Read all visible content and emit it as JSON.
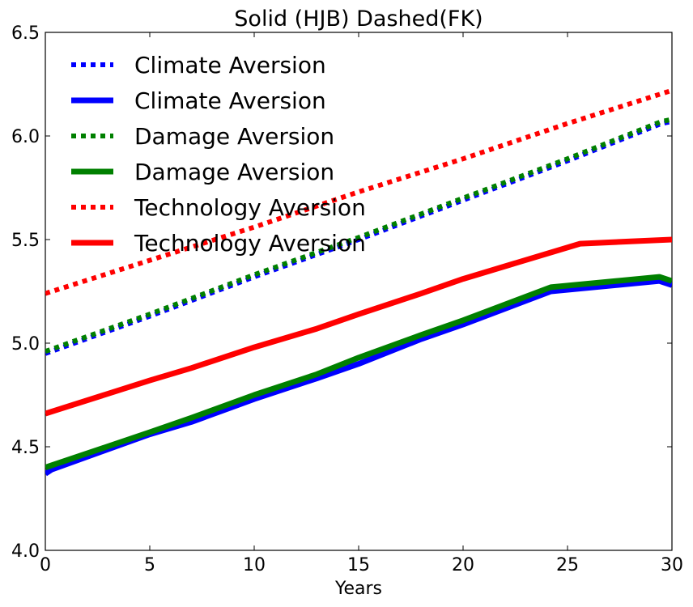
{
  "chart_data": {
    "type": "line",
    "title": "Solid (HJB) Dashed(FK)",
    "xlabel": "Years",
    "ylabel": "",
    "xlim": [
      0,
      30
    ],
    "ylim": [
      4.0,
      6.5
    ],
    "xticks": [
      0,
      5,
      10,
      15,
      20,
      25,
      30
    ],
    "yticks": [
      4.0,
      4.5,
      5.0,
      5.5,
      6.0,
      6.5
    ],
    "xtick_labels": [
      "0",
      "5",
      "10",
      "15",
      "20",
      "25",
      "30"
    ],
    "ytick_labels": [
      "4.0",
      "4.5",
      "5.0",
      "5.5",
      "6.0",
      "6.5"
    ],
    "grid": false,
    "legend_location": "upper-left",
    "series": [
      {
        "name": "Climate Aversion",
        "style": "dotted",
        "color": "#0000ff",
        "x": [
          0,
          5,
          10,
          15,
          20,
          25,
          29.5,
          30
        ],
        "y": [
          4.95,
          5.13,
          5.32,
          5.5,
          5.69,
          5.88,
          6.06,
          6.07
        ]
      },
      {
        "name": "Climate Aversion",
        "style": "solid",
        "color": "#0000ff",
        "x": [
          0,
          0.3,
          5,
          7,
          10,
          13,
          15,
          18,
          20,
          24.2,
          29.4,
          30
        ],
        "y": [
          4.37,
          4.39,
          4.56,
          4.62,
          4.73,
          4.83,
          4.9,
          5.02,
          5.09,
          5.25,
          5.3,
          5.28
        ]
      },
      {
        "name": "Damage Aversion",
        "style": "dotted",
        "color": "#008000",
        "x": [
          0,
          5,
          10,
          15,
          20,
          25,
          29.5,
          30
        ],
        "y": [
          4.96,
          5.14,
          5.33,
          5.51,
          5.7,
          5.89,
          6.07,
          6.08
        ]
      },
      {
        "name": "Damage Aversion",
        "style": "solid",
        "color": "#008000",
        "x": [
          0,
          0.3,
          5,
          7,
          10,
          13,
          15,
          18,
          20,
          24.2,
          29.4,
          30
        ],
        "y": [
          4.4,
          4.41,
          4.57,
          4.64,
          4.75,
          4.85,
          4.93,
          5.04,
          5.11,
          5.27,
          5.32,
          5.3
        ]
      },
      {
        "name": "Technology Aversion",
        "style": "dotted",
        "color": "#ff0000",
        "x": [
          0,
          5,
          10,
          15,
          20,
          25,
          30
        ],
        "y": [
          5.24,
          5.4,
          5.56,
          5.73,
          5.89,
          6.06,
          6.22
        ]
      },
      {
        "name": "Technology Aversion",
        "style": "solid",
        "color": "#ff0000",
        "x": [
          0,
          5,
          7,
          10,
          13,
          15,
          18,
          20,
          25.6,
          30
        ],
        "y": [
          4.66,
          4.82,
          4.88,
          4.98,
          5.07,
          5.14,
          5.24,
          5.31,
          5.48,
          5.5
        ]
      }
    ]
  }
}
